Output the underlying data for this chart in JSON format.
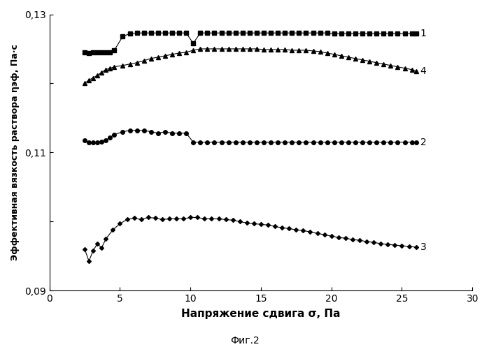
{
  "title": "",
  "xlabel": "Напряжение сдвига σ, Па",
  "ylabel": "Эффективная вязкость раствора ηэф, Па·с",
  "caption": "Фиг.2",
  "xlim": [
    0,
    30
  ],
  "ylim": [
    0.09,
    0.13
  ],
  "ytick_vals": [
    0.09,
    0.1,
    0.11,
    0.12,
    0.13
  ],
  "ytick_labels": [
    "0,09",
    "",
    "0,11",
    "",
    "0,13"
  ],
  "xticks": [
    0,
    5,
    10,
    15,
    20,
    25,
    30
  ],
  "background_color": "#ffffff",
  "line_color": "#000000",
  "curve1": {
    "label": "1",
    "x": [
      2.5,
      2.8,
      3.1,
      3.4,
      3.7,
      4.0,
      4.3,
      4.6,
      5.2,
      5.7,
      6.2,
      6.7,
      7.2,
      7.7,
      8.2,
      8.7,
      9.2,
      9.7,
      10.2,
      10.7,
      11.2,
      11.7,
      12.2,
      12.7,
      13.2,
      13.7,
      14.2,
      14.7,
      15.2,
      15.7,
      16.2,
      16.7,
      17.2,
      17.7,
      18.2,
      18.7,
      19.2,
      19.7,
      20.2,
      20.7,
      21.2,
      21.7,
      22.2,
      22.7,
      23.2,
      23.7,
      24.2,
      24.7,
      25.2,
      25.7,
      26.0
    ],
    "y": [
      0.1245,
      0.1244,
      0.1245,
      0.1245,
      0.1245,
      0.1245,
      0.1245,
      0.1248,
      0.1268,
      0.1272,
      0.1273,
      0.1273,
      0.1273,
      0.1273,
      0.1273,
      0.1273,
      0.1273,
      0.1273,
      0.1258,
      0.1273,
      0.1273,
      0.1273,
      0.1273,
      0.1273,
      0.1273,
      0.1273,
      0.1273,
      0.1273,
      0.1273,
      0.1273,
      0.1273,
      0.1273,
      0.1273,
      0.1273,
      0.1273,
      0.1273,
      0.1273,
      0.1273,
      0.1272,
      0.1272,
      0.1272,
      0.1272,
      0.1272,
      0.1272,
      0.1272,
      0.1272,
      0.1272,
      0.1272,
      0.1272,
      0.1272,
      0.1272
    ],
    "marker": "s",
    "markersize": 4
  },
  "curve2": {
    "label": "2",
    "x": [
      2.5,
      2.8,
      3.1,
      3.4,
      3.7,
      4.0,
      4.3,
      4.6,
      5.2,
      5.7,
      6.2,
      6.7,
      7.2,
      7.7,
      8.2,
      8.7,
      9.2,
      9.7,
      10.2,
      10.7,
      11.2,
      11.7,
      12.2,
      12.7,
      13.2,
      13.7,
      14.2,
      14.7,
      15.2,
      15.7,
      16.2,
      16.7,
      17.2,
      17.7,
      18.2,
      18.7,
      19.2,
      19.7,
      20.2,
      20.7,
      21.2,
      21.7,
      22.2,
      22.7,
      23.2,
      23.7,
      24.2,
      24.7,
      25.2,
      25.7,
      26.0
    ],
    "y": [
      0.1118,
      0.1115,
      0.1115,
      0.1115,
      0.1116,
      0.1118,
      0.1122,
      0.1126,
      0.113,
      0.1132,
      0.1132,
      0.1132,
      0.113,
      0.1128,
      0.113,
      0.1128,
      0.1128,
      0.1128,
      0.1115,
      0.1115,
      0.1115,
      0.1115,
      0.1115,
      0.1115,
      0.1115,
      0.1115,
      0.1115,
      0.1115,
      0.1115,
      0.1115,
      0.1115,
      0.1115,
      0.1115,
      0.1115,
      0.1115,
      0.1115,
      0.1115,
      0.1115,
      0.1115,
      0.1115,
      0.1115,
      0.1115,
      0.1115,
      0.1115,
      0.1115,
      0.1115,
      0.1115,
      0.1115,
      0.1115,
      0.1115,
      0.1115
    ],
    "marker": "o",
    "markersize": 4
  },
  "curve3": {
    "label": "3",
    "x": [
      2.5,
      2.8,
      3.1,
      3.4,
      3.7,
      4.0,
      4.5,
      5.0,
      5.5,
      6.0,
      6.5,
      7.0,
      7.5,
      8.0,
      8.5,
      9.0,
      9.5,
      10.0,
      10.5,
      11.0,
      11.5,
      12.0,
      12.5,
      13.0,
      13.5,
      14.0,
      14.5,
      15.0,
      15.5,
      16.0,
      16.5,
      17.0,
      17.5,
      18.0,
      18.5,
      19.0,
      19.5,
      20.0,
      20.5,
      21.0,
      21.5,
      22.0,
      22.5,
      23.0,
      23.5,
      24.0,
      24.5,
      25.0,
      25.5,
      26.0
    ],
    "y": [
      0.096,
      0.0943,
      0.0958,
      0.0968,
      0.0962,
      0.0975,
      0.0988,
      0.0997,
      0.1003,
      0.1005,
      0.1003,
      0.1006,
      0.1005,
      0.1003,
      0.1004,
      0.1004,
      0.1004,
      0.1006,
      0.1006,
      0.1004,
      0.1004,
      0.1004,
      0.1003,
      0.1002,
      0.1,
      0.0998,
      0.0997,
      0.0996,
      0.0995,
      0.0993,
      0.0991,
      0.099,
      0.0988,
      0.0987,
      0.0985,
      0.0983,
      0.0981,
      0.0979,
      0.0977,
      0.0976,
      0.0974,
      0.0973,
      0.0971,
      0.097,
      0.0968,
      0.0967,
      0.0966,
      0.0965,
      0.0964,
      0.0963
    ],
    "marker": "D",
    "markersize": 3
  },
  "curve4": {
    "label": "4",
    "x": [
      2.5,
      2.8,
      3.1,
      3.4,
      3.7,
      4.0,
      4.3,
      4.6,
      5.2,
      5.7,
      6.2,
      6.7,
      7.2,
      7.7,
      8.2,
      8.7,
      9.2,
      9.7,
      10.2,
      10.7,
      11.2,
      11.7,
      12.2,
      12.7,
      13.2,
      13.7,
      14.2,
      14.7,
      15.2,
      15.7,
      16.2,
      16.7,
      17.2,
      17.7,
      18.2,
      18.7,
      19.2,
      19.7,
      20.2,
      20.7,
      21.2,
      21.7,
      22.2,
      22.7,
      23.2,
      23.7,
      24.2,
      24.7,
      25.2,
      25.7,
      26.0
    ],
    "y": [
      0.12,
      0.1205,
      0.1208,
      0.1212,
      0.1216,
      0.122,
      0.1222,
      0.1224,
      0.1226,
      0.1228,
      0.123,
      0.1233,
      0.1236,
      0.1238,
      0.124,
      0.1242,
      0.1244,
      0.1245,
      0.1248,
      0.125,
      0.125,
      0.125,
      0.125,
      0.125,
      0.125,
      0.125,
      0.125,
      0.125,
      0.1249,
      0.1249,
      0.1249,
      0.1249,
      0.1248,
      0.1248,
      0.1248,
      0.1247,
      0.1246,
      0.1244,
      0.1242,
      0.124,
      0.1238,
      0.1236,
      0.1234,
      0.1232,
      0.123,
      0.1228,
      0.1226,
      0.1224,
      0.1222,
      0.122,
      0.1218
    ],
    "marker": "^",
    "markersize": 4
  }
}
